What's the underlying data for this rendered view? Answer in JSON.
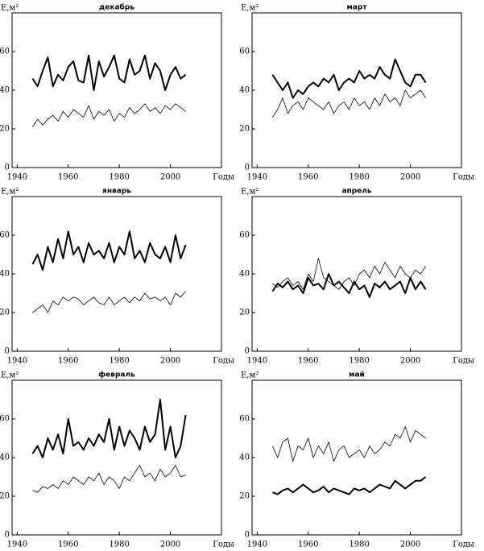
{
  "chart_data": [
    {
      "type": "line",
      "title": "декабрь",
      "ylabel": "E,м²",
      "xlabel": "Годы",
      "x": [
        1946,
        1948,
        1950,
        1952,
        1954,
        1956,
        1958,
        1960,
        1962,
        1964,
        1966,
        1968,
        1970,
        1972,
        1974,
        1976,
        1978,
        1980,
        1982,
        1984,
        1986,
        1988,
        1990,
        1992,
        1994,
        1996,
        1998,
        2000,
        2002,
        2004,
        2006
      ],
      "series": [
        {
          "color": "#000",
          "line_width": 2,
          "values": [
            46,
            42,
            50,
            57,
            42,
            48,
            45,
            52,
            55,
            45,
            44,
            58,
            40,
            55,
            47,
            52,
            58,
            46,
            44,
            56,
            48,
            50,
            58,
            46,
            54,
            50,
            40,
            48,
            52,
            46,
            48
          ]
        },
        {
          "color": "#000",
          "line_width": 0.8,
          "values": [
            21,
            25,
            22,
            25,
            27,
            24,
            29,
            26,
            30,
            28,
            26,
            32,
            25,
            29,
            27,
            30,
            24,
            28,
            26,
            31,
            28,
            30,
            33,
            29,
            31,
            28,
            32,
            30,
            33,
            31,
            29
          ]
        }
      ],
      "xlim": [
        1938,
        2020
      ],
      "ylim": [
        0,
        80
      ],
      "xticks": [
        1940,
        1960,
        1980,
        2000
      ],
      "yticks": [
        0,
        20,
        40,
        60
      ]
    },
    {
      "type": "line",
      "title": "март",
      "ylabel": "E,м²",
      "xlabel": "Годы",
      "x": [
        1946,
        1948,
        1950,
        1952,
        1954,
        1956,
        1958,
        1960,
        1962,
        1964,
        1966,
        1968,
        1970,
        1972,
        1974,
        1976,
        1978,
        1980,
        1982,
        1984,
        1986,
        1988,
        1990,
        1992,
        1994,
        1996,
        1998,
        2000,
        2002,
        2004,
        2006
      ],
      "series": [
        {
          "color": "#000",
          "line_width": 2,
          "values": [
            48,
            44,
            40,
            44,
            36,
            40,
            38,
            42,
            44,
            42,
            46,
            44,
            48,
            40,
            44,
            46,
            44,
            50,
            46,
            48,
            46,
            52,
            48,
            46,
            56,
            50,
            44,
            42,
            48,
            48,
            44
          ]
        },
        {
          "color": "#000",
          "line_width": 0.8,
          "values": [
            26,
            30,
            36,
            28,
            32,
            34,
            30,
            36,
            34,
            32,
            30,
            34,
            28,
            32,
            34,
            30,
            36,
            32,
            34,
            30,
            36,
            32,
            38,
            34,
            36,
            32,
            40,
            36,
            38,
            40,
            36
          ]
        }
      ],
      "xlim": [
        1938,
        2020
      ],
      "ylim": [
        0,
        80
      ],
      "xticks": [
        1940,
        1960,
        1980,
        2000
      ],
      "yticks": [
        0,
        20,
        40,
        60
      ]
    },
    {
      "type": "line",
      "title": "январь",
      "ylabel": "E,м²",
      "xlabel": "Годы",
      "x": [
        1946,
        1948,
        1950,
        1952,
        1954,
        1956,
        1958,
        1960,
        1962,
        1964,
        1966,
        1968,
        1970,
        1972,
        1974,
        1976,
        1978,
        1980,
        1982,
        1984,
        1986,
        1988,
        1990,
        1992,
        1994,
        1996,
        1998,
        2000,
        2002,
        2004,
        2006
      ],
      "series": [
        {
          "color": "#000",
          "line_width": 2,
          "values": [
            45,
            50,
            42,
            54,
            46,
            58,
            48,
            62,
            50,
            54,
            46,
            56,
            50,
            52,
            48,
            56,
            46,
            54,
            50,
            62,
            48,
            52,
            46,
            56,
            50,
            48,
            54,
            46,
            60,
            48,
            55
          ]
        },
        {
          "color": "#000",
          "line_width": 0.8,
          "values": [
            20,
            22,
            24,
            20,
            26,
            24,
            28,
            26,
            28,
            27,
            24,
            26,
            28,
            25,
            24,
            28,
            24,
            26,
            28,
            25,
            28,
            26,
            30,
            27,
            28,
            26,
            28,
            24,
            30,
            28,
            31
          ]
        }
      ],
      "xlim": [
        1938,
        2020
      ],
      "ylim": [
        0,
        80
      ],
      "xticks": [
        1940,
        1960,
        1980,
        2000
      ],
      "yticks": [
        0,
        20,
        40,
        60
      ]
    },
    {
      "type": "line",
      "title": "апрель",
      "ylabel": "E,м²",
      "xlabel": "Годы",
      "x": [
        1946,
        1948,
        1950,
        1952,
        1954,
        1956,
        1958,
        1960,
        1962,
        1964,
        1966,
        1968,
        1970,
        1972,
        1974,
        1976,
        1978,
        1980,
        1982,
        1984,
        1986,
        1988,
        1990,
        1992,
        1994,
        1996,
        1998,
        2000,
        2002,
        2004,
        2006
      ],
      "series": [
        {
          "color": "#000",
          "line_width": 2,
          "values": [
            31,
            35,
            33,
            36,
            32,
            34,
            30,
            38,
            34,
            35,
            32,
            40,
            34,
            36,
            33,
            30,
            36,
            32,
            34,
            28,
            35,
            33,
            36,
            32,
            34,
            36,
            30,
            38,
            32,
            36,
            32
          ]
        },
        {
          "color": "#000",
          "line_width": 0.8,
          "values": [
            35,
            33,
            36,
            38,
            34,
            36,
            32,
            40,
            36,
            48,
            38,
            36,
            34,
            32,
            36,
            38,
            34,
            40,
            42,
            38,
            44,
            40,
            46,
            42,
            38,
            44,
            40,
            38,
            42,
            40,
            44
          ]
        }
      ],
      "xlim": [
        1938,
        2020
      ],
      "ylim": [
        0,
        80
      ],
      "xticks": [
        1940,
        1960,
        1980,
        2000
      ],
      "yticks": [
        0,
        20,
        40,
        60
      ]
    },
    {
      "type": "line",
      "title": "февраль",
      "ylabel": "E,м²",
      "xlabel": "Годы",
      "x": [
        1946,
        1948,
        1950,
        1952,
        1954,
        1956,
        1958,
        1960,
        1962,
        1964,
        1966,
        1968,
        1970,
        1972,
        1974,
        1976,
        1978,
        1980,
        1982,
        1984,
        1986,
        1988,
        1990,
        1992,
        1994,
        1996,
        1998,
        2000,
        2002,
        2004,
        2006
      ],
      "series": [
        {
          "color": "#000",
          "line_width": 2,
          "values": [
            42,
            46,
            40,
            50,
            44,
            52,
            42,
            60,
            46,
            48,
            44,
            50,
            46,
            52,
            48,
            60,
            44,
            56,
            46,
            54,
            50,
            44,
            56,
            48,
            52,
            70,
            44,
            56,
            40,
            46,
            62
          ]
        },
        {
          "color": "#000",
          "line_width": 0.8,
          "values": [
            23,
            22,
            25,
            24,
            26,
            24,
            28,
            26,
            30,
            28,
            26,
            30,
            28,
            32,
            26,
            30,
            28,
            24,
            30,
            28,
            32,
            36,
            30,
            32,
            28,
            34,
            30,
            32,
            36,
            30,
            31
          ]
        }
      ],
      "xlim": [
        1938,
        2020
      ],
      "ylim": [
        0,
        80
      ],
      "xticks": [
        1940,
        1960,
        1980,
        2000
      ],
      "yticks": [
        0,
        20,
        40,
        60
      ]
    },
    {
      "type": "line",
      "title": "май",
      "ylabel": "E,м²",
      "xlabel": "Годы",
      "x": [
        1946,
        1948,
        1950,
        1952,
        1954,
        1956,
        1958,
        1960,
        1962,
        1964,
        1966,
        1968,
        1970,
        1972,
        1974,
        1976,
        1978,
        1980,
        1982,
        1984,
        1986,
        1988,
        1990,
        1992,
        1994,
        1996,
        1998,
        2000,
        2002,
        2004,
        2006
      ],
      "series": [
        {
          "color": "#000",
          "line_width": 2,
          "values": [
            22,
            21,
            23,
            24,
            22,
            24,
            26,
            24,
            22,
            23,
            25,
            22,
            24,
            23,
            22,
            21,
            24,
            23,
            24,
            22,
            24,
            26,
            25,
            24,
            28,
            26,
            24,
            26,
            28,
            28,
            30
          ]
        },
        {
          "color": "#000",
          "line_width": 0.8,
          "values": [
            46,
            40,
            48,
            50,
            38,
            46,
            44,
            50,
            40,
            46,
            42,
            48,
            38,
            44,
            46,
            40,
            42,
            44,
            40,
            46,
            42,
            44,
            48,
            46,
            52,
            50,
            56,
            48,
            54,
            52,
            50
          ]
        }
      ],
      "xlim": [
        1938,
        2020
      ],
      "ylim": [
        0,
        80
      ],
      "xticks": [
        1940,
        1960,
        1980,
        2000
      ],
      "yticks": [
        0,
        20,
        40,
        60
      ]
    }
  ]
}
